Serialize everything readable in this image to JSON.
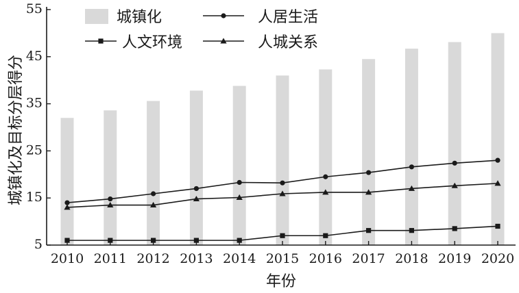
{
  "chart_data": {
    "type": "bar",
    "categories": [
      "2010",
      "2011",
      "2012",
      "2013",
      "2014",
      "2015",
      "2016",
      "2017",
      "2018",
      "2019",
      "2020"
    ],
    "ylim": [
      5,
      55
    ],
    "yticks": [
      5,
      15,
      25,
      35,
      45,
      55
    ],
    "ylabel": "城镇化及目标分层得分",
    "xlabel": "年份",
    "grid": false,
    "legend_position": "top",
    "bar_series": {
      "name": "城镇化",
      "color": "#d9d9d9",
      "values": [
        32,
        33.6,
        35.6,
        37.8,
        38.8,
        41,
        42.3,
        44.5,
        46.7,
        48.1,
        50
      ]
    },
    "line_series": [
      {
        "name": "人居生活",
        "marker": "circle",
        "color": "#1a1a1a",
        "values": [
          14,
          14.8,
          15.9,
          17,
          18.3,
          18.2,
          19.5,
          20.4,
          21.6,
          22.4,
          23
        ]
      },
      {
        "name": "人文环境",
        "marker": "square",
        "color": "#1a1a1a",
        "values": [
          6,
          6,
          6,
          6,
          6,
          7,
          7,
          8.1,
          8.1,
          8.5,
          9
        ]
      },
      {
        "name": "人城关系",
        "marker": "triangle",
        "color": "#1a1a1a",
        "values": [
          13,
          13.5,
          13.5,
          14.8,
          15.1,
          15.9,
          16.2,
          16.2,
          17,
          17.6,
          18.1
        ]
      }
    ]
  }
}
